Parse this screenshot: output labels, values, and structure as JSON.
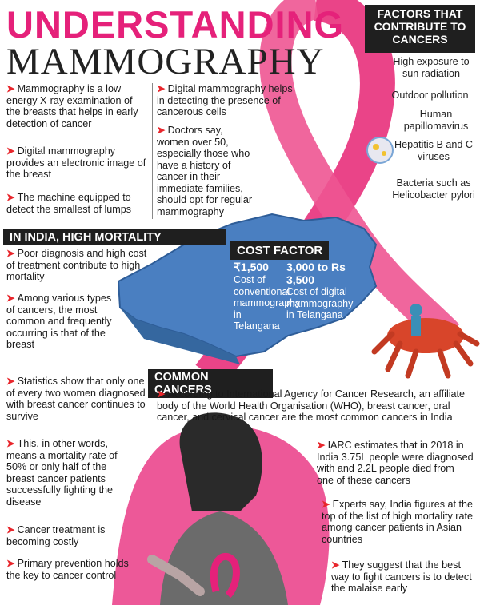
{
  "title": {
    "line1": "UNDERSTANDING",
    "line2": "MAMMOGRAPHY"
  },
  "intro_left": [
    "Mammography is a low energy X-ray examination of the breasts that helps in early detection of cancer",
    "Digital mammography provides an electronic image of the breast",
    "The machine equipped to detect the smallest of lumps"
  ],
  "intro_right": [
    "Digital mammography helps in detecting the presence of cancerous cells",
    "Doctors say, women over 50, especially those who have a history of cancer in their immediate families, should opt for regular mammography"
  ],
  "factors": {
    "heading": "FACTORS THAT CONTRIBUTE TO CANCERS",
    "items": [
      "High exposure to sun radiation",
      "Outdoor pollution",
      "Human papillomavirus",
      "Hepatitis B and C viruses",
      "Bacteria such as Helicobacter pylori"
    ]
  },
  "india": {
    "heading": "IN INDIA, HIGH MORTALITY",
    "items": [
      "Poor diagnosis and high cost of treatment contribute to high mortality",
      "Among various types of cancers, the most common and frequently occurring is that of the breast",
      "Statistics show that only one of every two women diagnosed with breast cancer continues to survive",
      "This, in other words, means a mortality rate of 50% or only half of the breast cancer patients successfully fighting the disease",
      "Cancer treatment is becoming costly",
      "Primary prevention holds the key to cancer control"
    ]
  },
  "cost": {
    "heading": "COST FACTOR",
    "conv_value": "₹1,500",
    "conv_desc": "Cost of conventional mammography in Telangana",
    "digital_value": "3,000 to Rs 3,500",
    "digital_desc": "Cost of digital mammography in Telangana"
  },
  "common": {
    "heading": "COMMON CANCERS",
    "intro": "According to International Agency for Cancer Research, an affiliate body of the World Health Organisation (WHO), breast cancer, oral cancer, and cervical cancer are the most common cancers in India",
    "items": [
      "IARC estimates that in 2018 in India 3.75L people were diagnosed with and 2.2L people died from one of these cancers",
      "Experts say, India figures at the top of the list of high mortality rate among cancer patients in Asian countries",
      "They suggest that the best way to fight cancers is to detect the malaise early"
    ]
  },
  "colors": {
    "accent": "#e5217a",
    "arrow": "#e8262c",
    "band": "#1f1f1f",
    "map": "#4a7fc1"
  }
}
